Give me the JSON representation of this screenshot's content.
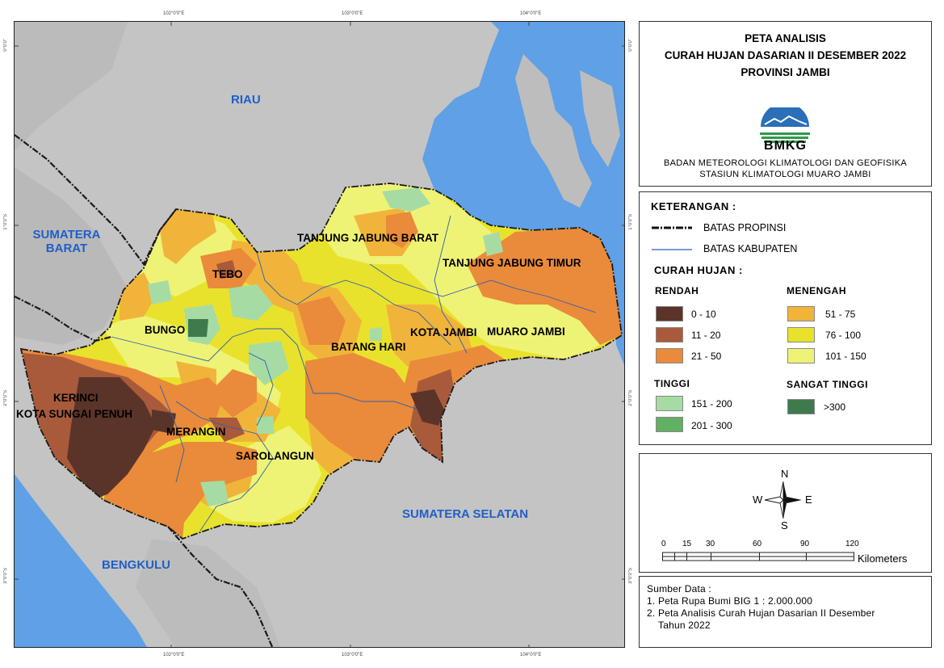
{
  "title": {
    "line1": "PETA ANALISIS",
    "line2": "CURAH HUJAN DASARIAN II DESEMBER 2022",
    "line3": "PROVINSI JAMBI"
  },
  "logo": {
    "text": "BMKG",
    "agency_line1": "BADAN METEOROLOGI KLIMATOLOGI DAN GEOFISIKA",
    "agency_line2": "STASIUN KLIMATOLOGI MUARO JAMBI"
  },
  "legend": {
    "heading": "KETERANGAN :",
    "boundary_province": "BATAS PROPINSI",
    "boundary_regency": "BATAS KABUPATEN",
    "rainfall_heading": "CURAH HUJAN :",
    "groups": [
      {
        "name": "RENDAH",
        "classes": [
          {
            "range": "0 - 10",
            "color": "#5a3428"
          },
          {
            "range": "11 - 20",
            "color": "#a85a3b"
          },
          {
            "range": "21 - 50",
            "color": "#e98b3a"
          }
        ]
      },
      {
        "name": "MENENGAH",
        "classes": [
          {
            "range": "51 - 75",
            "color": "#f1b43a"
          },
          {
            "range": "76 - 100",
            "color": "#e9e22c"
          },
          {
            "range": "101 - 150",
            "color": "#eef375"
          }
        ]
      },
      {
        "name": "TINGGI",
        "classes": [
          {
            "range": "151 - 200",
            "color": "#a6dca4"
          },
          {
            "range": "201 - 300",
            "color": "#62b062"
          }
        ]
      },
      {
        "name": "SANGAT TINGGI",
        "classes": [
          {
            "range": ">300",
            "color": "#3e7a4b"
          }
        ]
      }
    ]
  },
  "compass": {
    "n": "N",
    "s": "S",
    "e": "E",
    "w": "W"
  },
  "scale": {
    "ticks": [
      "0",
      "15",
      "30",
      "60",
      "90",
      "120"
    ],
    "unit": "Kilometers"
  },
  "source": {
    "heading": "Sumber Data :",
    "items": [
      "1. Peta Rupa Bumi BIG 1 : 2.000.000",
      "2. Peta Analisis Curah Hujan Dasarian II Desember",
      "Tahun 2022"
    ]
  },
  "map": {
    "grid_top": [
      "102°0'0\"E",
      "103°0'0\"E",
      "104°0'0\"E"
    ],
    "grid_bottom": [
      "102°0'0\"E",
      "103°0'0\"E",
      "104°0'0\"E"
    ],
    "grid_left": [
      "0°0'0\"",
      "1°0'0\"S",
      "2°0'0\"S",
      "3°0'0\"S"
    ],
    "grid_right": [
      "0°0'0\"",
      "1°0'0\"S",
      "2°0'0\"S",
      "3°0'0\"S"
    ],
    "provinces": {
      "riau": "RIAU",
      "sumbar": "SUMATERA BARAT",
      "sumsel": "SUMATERA SELATAN",
      "bengkulu": "BENGKULU"
    },
    "regencies": {
      "tanjabbar": "TANJUNG JABUNG BARAT",
      "tanjabtim": "TANJUNG JABUNG TIMUR",
      "tebo": "TEBO",
      "bungo": "BUNGO",
      "kotajambi": "KOTA JAMBI",
      "muarojambi": "MUARO JAMBI",
      "batanghari": "BATANG HARI",
      "kerinci": "KERINCI",
      "sungaipenuh": "KOTA SUNGAI PENUH",
      "merangin": "MERANGIN",
      "sarolangun": "SAROLANGUN"
    },
    "colors": {
      "sea": "#5fa0e6",
      "land_outside": "#c4c4c4"
    }
  }
}
